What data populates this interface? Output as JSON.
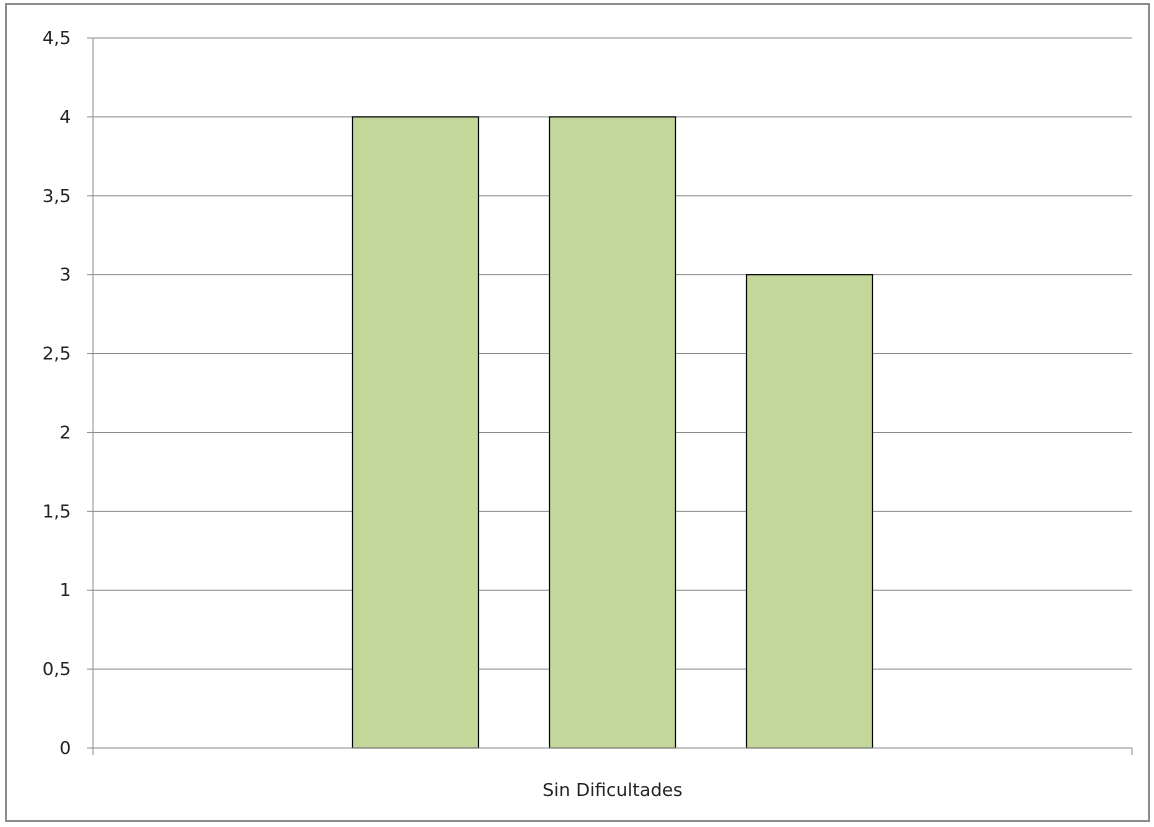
{
  "chart_data": {
    "type": "bar",
    "categories": [
      "Sin Dificultades"
    ],
    "series": [
      {
        "values": [
          4
        ]
      },
      {
        "values": [
          4
        ]
      },
      {
        "values": [
          3
        ]
      }
    ],
    "title": "",
    "xlabel": "",
    "ylabel": "",
    "ylim": [
      0,
      4.5
    ],
    "yticks": [
      "0",
      "0,5",
      "1",
      "1,5",
      "2",
      "2,5",
      "3",
      "3,5",
      "4",
      "4,5"
    ],
    "grid": true,
    "legend": "none",
    "colors": {
      "bar_fill": "#c4d79b",
      "bar_stroke": "#000000",
      "grid": "#8c8c8c",
      "axis": "#8c8c8c"
    }
  }
}
